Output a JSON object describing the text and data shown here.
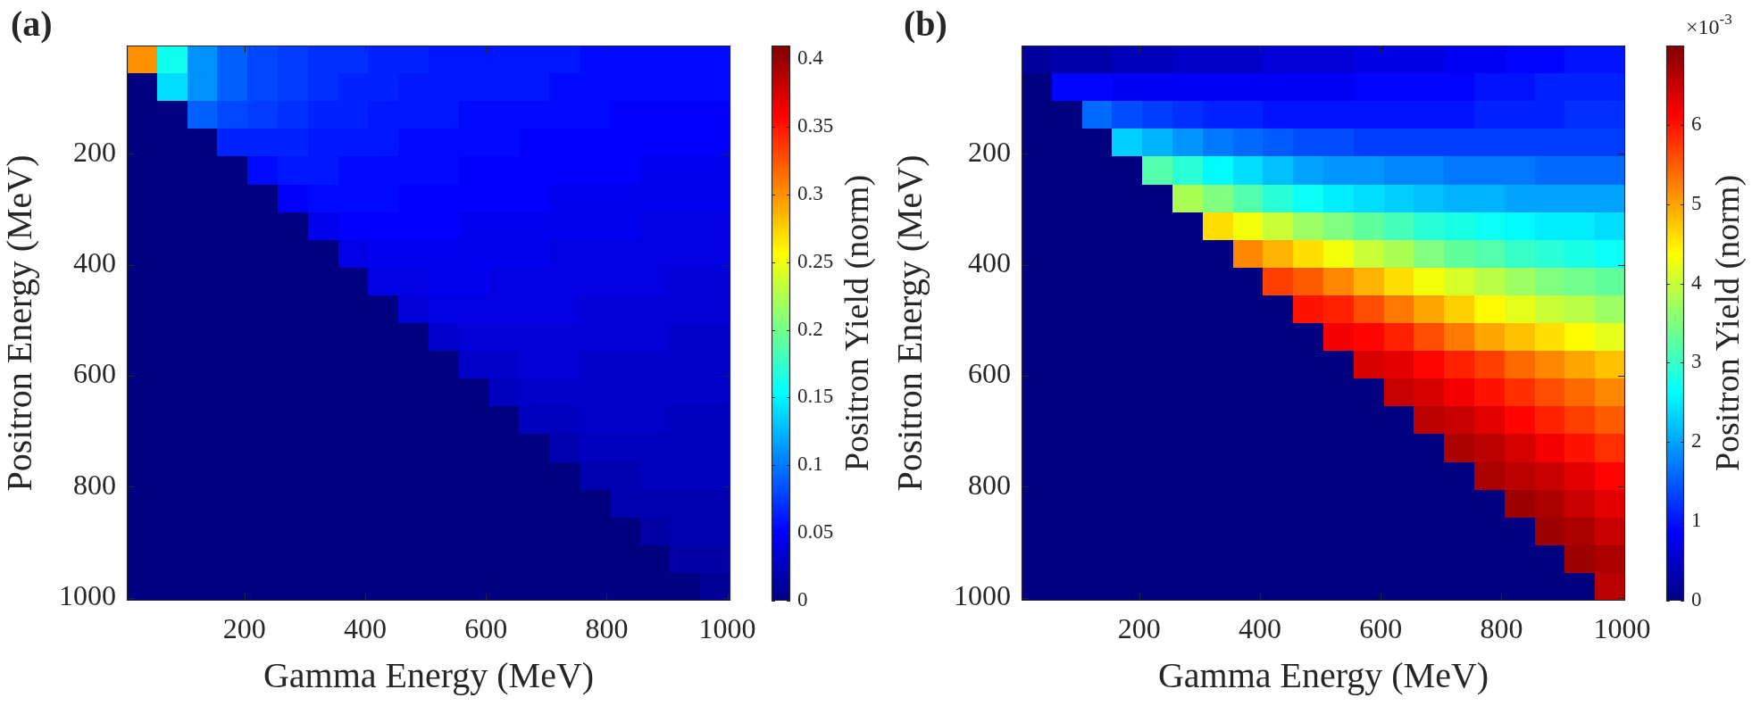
{
  "chart_data": [
    {
      "type": "heatmap",
      "title": "(a)",
      "xlabel": "Gamma Energy (MeV)",
      "ylabel": "Positron Energy (MeV)",
      "clabel": "Positron Yield (norm)",
      "x": [
        30,
        80,
        130,
        180,
        230,
        280,
        330,
        380,
        430,
        480,
        530,
        580,
        630,
        680,
        730,
        780,
        830,
        880,
        930,
        980
      ],
      "y": [
        30,
        80,
        130,
        180,
        230,
        280,
        330,
        380,
        430,
        480,
        530,
        580,
        630,
        680,
        730,
        780,
        830,
        880,
        930,
        980
      ],
      "xlim": [
        5,
        1005
      ],
      "ylim": [
        1005,
        5
      ],
      "xticks": [
        200,
        400,
        600,
        800,
        1000
      ],
      "yticks": [
        200,
        400,
        600,
        800,
        1000
      ],
      "clim": [
        0,
        0.41
      ],
      "cticks": [
        0,
        0.05,
        0.1,
        0.15,
        0.2,
        0.25,
        0.3,
        0.35,
        0.4
      ],
      "cells": [
        [
          0.3,
          0.16,
          0.11,
          0.09,
          0.08,
          0.075,
          0.07,
          0.07,
          0.065,
          0.065,
          0.06,
          0.06,
          0.06,
          0.06,
          0.06,
          0.055,
          0.055,
          0.055,
          0.055,
          0.055
        ],
        [
          0,
          0.14,
          0.11,
          0.09,
          0.08,
          0.075,
          0.07,
          0.065,
          0.065,
          0.06,
          0.06,
          0.06,
          0.06,
          0.06,
          0.055,
          0.055,
          0.055,
          0.055,
          0.055,
          0.055
        ],
        [
          0,
          0,
          0.09,
          0.08,
          0.075,
          0.07,
          0.065,
          0.065,
          0.06,
          0.06,
          0.06,
          0.055,
          0.055,
          0.055,
          0.055,
          0.055,
          0.05,
          0.05,
          0.05,
          0.05
        ],
        [
          0,
          0,
          0,
          0.065,
          0.065,
          0.065,
          0.06,
          0.06,
          0.06,
          0.055,
          0.055,
          0.055,
          0.055,
          0.05,
          0.05,
          0.05,
          0.05,
          0.05,
          0.05,
          0.05
        ],
        [
          0,
          0,
          0,
          0,
          0.055,
          0.06,
          0.06,
          0.055,
          0.055,
          0.055,
          0.055,
          0.05,
          0.05,
          0.05,
          0.05,
          0.05,
          0.05,
          0.045,
          0.045,
          0.045
        ],
        [
          0,
          0,
          0,
          0,
          0,
          0.05,
          0.055,
          0.055,
          0.055,
          0.05,
          0.05,
          0.05,
          0.05,
          0.05,
          0.045,
          0.045,
          0.045,
          0.045,
          0.045,
          0.045
        ],
        [
          0,
          0,
          0,
          0,
          0,
          0,
          0.045,
          0.05,
          0.05,
          0.05,
          0.05,
          0.045,
          0.045,
          0.045,
          0.045,
          0.045,
          0.045,
          0.04,
          0.04,
          0.04
        ],
        [
          0,
          0,
          0,
          0,
          0,
          0,
          0,
          0.04,
          0.045,
          0.045,
          0.045,
          0.045,
          0.045,
          0.045,
          0.04,
          0.04,
          0.04,
          0.04,
          0.04,
          0.04
        ],
        [
          0,
          0,
          0,
          0,
          0,
          0,
          0,
          0,
          0.04,
          0.04,
          0.045,
          0.045,
          0.04,
          0.04,
          0.04,
          0.04,
          0.04,
          0.04,
          0.035,
          0.035
        ],
        [
          0,
          0,
          0,
          0,
          0,
          0,
          0,
          0,
          0,
          0.035,
          0.04,
          0.04,
          0.04,
          0.04,
          0.04,
          0.035,
          0.035,
          0.035,
          0.035,
          0.035
        ],
        [
          0,
          0,
          0,
          0,
          0,
          0,
          0,
          0,
          0,
          0,
          0.03,
          0.035,
          0.035,
          0.035,
          0.035,
          0.035,
          0.035,
          0.035,
          0.03,
          0.03
        ],
        [
          0,
          0,
          0,
          0,
          0,
          0,
          0,
          0,
          0,
          0,
          0,
          0.03,
          0.03,
          0.035,
          0.035,
          0.03,
          0.03,
          0.03,
          0.03,
          0.03
        ],
        [
          0,
          0,
          0,
          0,
          0,
          0,
          0,
          0,
          0,
          0,
          0,
          0,
          0.025,
          0.03,
          0.03,
          0.03,
          0.03,
          0.03,
          0.03,
          0.03
        ],
        [
          0,
          0,
          0,
          0,
          0,
          0,
          0,
          0,
          0,
          0,
          0,
          0,
          0,
          0.025,
          0.025,
          0.03,
          0.03,
          0.03,
          0.025,
          0.025
        ],
        [
          0,
          0,
          0,
          0,
          0,
          0,
          0,
          0,
          0,
          0,
          0,
          0,
          0,
          0,
          0.02,
          0.025,
          0.025,
          0.025,
          0.025,
          0.025
        ],
        [
          0,
          0,
          0,
          0,
          0,
          0,
          0,
          0,
          0,
          0,
          0,
          0,
          0,
          0,
          0,
          0.02,
          0.02,
          0.025,
          0.025,
          0.025
        ],
        [
          0,
          0,
          0,
          0,
          0,
          0,
          0,
          0,
          0,
          0,
          0,
          0,
          0,
          0,
          0,
          0,
          0.02,
          0.02,
          0.02,
          0.02
        ],
        [
          0,
          0,
          0,
          0,
          0,
          0,
          0,
          0,
          0,
          0,
          0,
          0,
          0,
          0,
          0,
          0,
          0,
          0.015,
          0.02,
          0.02
        ],
        [
          0,
          0,
          0,
          0,
          0,
          0,
          0,
          0,
          0,
          0,
          0,
          0,
          0,
          0,
          0,
          0,
          0,
          0,
          0.015,
          0.015
        ],
        [
          0,
          0,
          0,
          0,
          0,
          0,
          0,
          0,
          0,
          0,
          0,
          0,
          0,
          0,
          0,
          0,
          0,
          0,
          0,
          0.01
        ]
      ]
    },
    {
      "type": "heatmap",
      "title": "(b)",
      "xlabel": "Gamma Energy (MeV)",
      "ylabel": "Positron Energy (MeV)",
      "clabel": "Positron Yield (norm)",
      "annotations": [
        "×10$^{-3}$"
      ],
      "x": [
        30,
        80,
        130,
        180,
        230,
        280,
        330,
        380,
        430,
        480,
        530,
        580,
        630,
        680,
        730,
        780,
        830,
        880,
        930,
        980
      ],
      "y": [
        30,
        80,
        130,
        180,
        230,
        280,
        330,
        380,
        430,
        480,
        530,
        580,
        630,
        680,
        730,
        780,
        830,
        880,
        930,
        980
      ],
      "xlim": [
        5,
        1005
      ],
      "ylim": [
        1005,
        5
      ],
      "xticks": [
        200,
        400,
        600,
        800,
        1000
      ],
      "yticks": [
        200,
        400,
        600,
        800,
        1000
      ],
      "clim": [
        0,
        7
      ],
      "cticks": [
        0,
        1,
        2,
        3,
        4,
        5,
        6
      ],
      "cells": [
        [
          0.2,
          0.3,
          0.3,
          0.4,
          0.4,
          0.5,
          0.5,
          0.5,
          0.6,
          0.6,
          0.6,
          0.7,
          0.7,
          0.7,
          0.8,
          0.8,
          0.9,
          0.9,
          1.0,
          1.0
        ],
        [
          0,
          0.9,
          0.9,
          0.8,
          0.8,
          0.8,
          0.8,
          0.8,
          0.8,
          0.8,
          0.8,
          0.9,
          0.9,
          0.9,
          0.9,
          1.0,
          1.0,
          1.1,
          1.1,
          1.1
        ],
        [
          0,
          0,
          1.6,
          1.4,
          1.3,
          1.2,
          1.1,
          1.1,
          1.0,
          1.0,
          1.0,
          1.0,
          1.0,
          1.0,
          1.0,
          1.1,
          1.1,
          1.1,
          1.2,
          1.2
        ],
        [
          0,
          0,
          0,
          2.3,
          2.1,
          1.9,
          1.7,
          1.6,
          1.5,
          1.4,
          1.4,
          1.3,
          1.3,
          1.3,
          1.3,
          1.3,
          1.3,
          1.3,
          1.3,
          1.3
        ],
        [
          0,
          0,
          0,
          0,
          3.2,
          2.9,
          2.6,
          2.4,
          2.2,
          2.0,
          1.9,
          1.9,
          1.8,
          1.8,
          1.7,
          1.7,
          1.7,
          1.6,
          1.6,
          1.6
        ],
        [
          0,
          0,
          0,
          0,
          0,
          3.8,
          3.5,
          3.2,
          2.9,
          2.7,
          2.5,
          2.4,
          2.3,
          2.2,
          2.1,
          2.1,
          2.0,
          2.0,
          2.0,
          2.0
        ],
        [
          0,
          0,
          0,
          0,
          0,
          0,
          4.6,
          4.3,
          4.0,
          3.7,
          3.5,
          3.3,
          3.1,
          2.9,
          2.8,
          2.7,
          2.6,
          2.5,
          2.5,
          2.4
        ],
        [
          0,
          0,
          0,
          0,
          0,
          0,
          0,
          5.2,
          4.9,
          4.6,
          4.3,
          4.0,
          3.8,
          3.5,
          3.3,
          3.2,
          3.0,
          2.9,
          2.8,
          2.7
        ],
        [
          0,
          0,
          0,
          0,
          0,
          0,
          0,
          0,
          5.7,
          5.5,
          5.2,
          4.9,
          4.6,
          4.3,
          4.1,
          3.9,
          3.7,
          3.5,
          3.4,
          3.3
        ],
        [
          0,
          0,
          0,
          0,
          0,
          0,
          0,
          0,
          0,
          6.0,
          5.9,
          5.6,
          5.3,
          5.0,
          4.7,
          4.4,
          4.2,
          4.0,
          3.9,
          3.7
        ],
        [
          0,
          0,
          0,
          0,
          0,
          0,
          0,
          0,
          0,
          0,
          6.2,
          6.1,
          5.9,
          5.6,
          5.3,
          5.0,
          4.8,
          4.6,
          4.4,
          4.2
        ],
        [
          0,
          0,
          0,
          0,
          0,
          0,
          0,
          0,
          0,
          0,
          0,
          6.4,
          6.3,
          6.1,
          5.9,
          5.7,
          5.4,
          5.2,
          5.0,
          4.8
        ],
        [
          0,
          0,
          0,
          0,
          0,
          0,
          0,
          0,
          0,
          0,
          0,
          0,
          6.5,
          6.4,
          6.2,
          6.0,
          5.8,
          5.6,
          5.4,
          5.2
        ],
        [
          0,
          0,
          0,
          0,
          0,
          0,
          0,
          0,
          0,
          0,
          0,
          0,
          0,
          6.6,
          6.5,
          6.3,
          6.1,
          5.9,
          5.7,
          5.5
        ],
        [
          0,
          0,
          0,
          0,
          0,
          0,
          0,
          0,
          0,
          0,
          0,
          0,
          0,
          0,
          6.7,
          6.6,
          6.4,
          6.2,
          6.0,
          5.8
        ],
        [
          0,
          0,
          0,
          0,
          0,
          0,
          0,
          0,
          0,
          0,
          0,
          0,
          0,
          0,
          0,
          6.7,
          6.6,
          6.5,
          6.3,
          6.1
        ],
        [
          0,
          0,
          0,
          0,
          0,
          0,
          0,
          0,
          0,
          0,
          0,
          0,
          0,
          0,
          0,
          0,
          6.8,
          6.7,
          6.5,
          6.3
        ],
        [
          0,
          0,
          0,
          0,
          0,
          0,
          0,
          0,
          0,
          0,
          0,
          0,
          0,
          0,
          0,
          0,
          0,
          6.8,
          6.7,
          6.5
        ],
        [
          0,
          0,
          0,
          0,
          0,
          0,
          0,
          0,
          0,
          0,
          0,
          0,
          0,
          0,
          0,
          0,
          0,
          0,
          6.8,
          6.7
        ],
        [
          0,
          0,
          0,
          0,
          0,
          0,
          0,
          0,
          0,
          0,
          0,
          0,
          0,
          0,
          0,
          0,
          0,
          0,
          0,
          6.6
        ]
      ]
    }
  ]
}
